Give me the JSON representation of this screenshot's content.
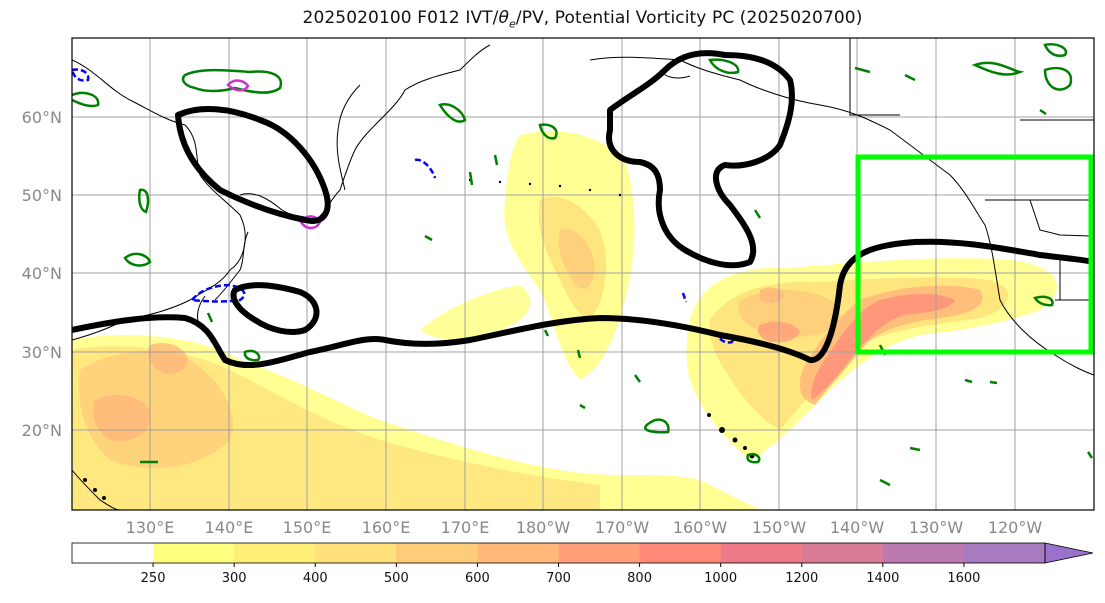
{
  "title": {
    "main": "2025020100 F012 IVT/",
    "theta": "θ",
    "theta_sub": "e",
    "rest": "/PV, Potential Vorticity PC (2025020700)"
  },
  "map": {
    "lat_labels": [
      "60°N",
      "50°N",
      "40°N",
      "30°N",
      "20°N"
    ],
    "lon_labels": [
      "130°E",
      "140°E",
      "150°E",
      "160°E",
      "170°E",
      "180°W",
      "170°W",
      "160°W",
      "150°W",
      "140°W",
      "130°W",
      "120°W"
    ],
    "region_box_color": "#00ff00",
    "pv_contour_color": "#000000",
    "positive_contour_color": "#008000",
    "negative_contour_color": "#0000ff",
    "theta_contour_color": "#cc33cc",
    "coastline_color": "#000000"
  },
  "colorbar": {
    "tick_labels": [
      "250",
      "300",
      "400",
      "500",
      "600",
      "700",
      "800",
      "1000",
      "1200",
      "1400",
      "1600"
    ],
    "colors": [
      "#ffffff",
      "#ffff80",
      "#ffef78",
      "#ffe07a",
      "#ffcc7a",
      "#ffb87a",
      "#ffa07a",
      "#ff8a7a",
      "#ee7a88",
      "#d97a96",
      "#bb7ab0",
      "#a87ac0",
      "#9a72cc"
    ]
  }
}
